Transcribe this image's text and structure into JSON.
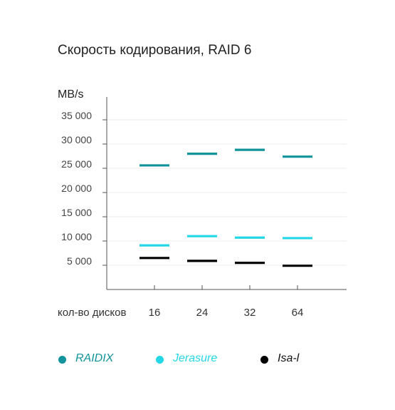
{
  "title": "Скорость кодирования, RAID 6",
  "chart_data": {
    "type": "scatter",
    "ylabel": "MB/s",
    "xlabel": "кол-во дисков",
    "categories": [
      "16",
      "24",
      "32",
      "64"
    ],
    "yticks": [
      "5 000",
      "10 000",
      "15 000",
      "20 000",
      "25 000",
      "30 000",
      "35 000"
    ],
    "ytick_values": [
      5000,
      10000,
      15000,
      20000,
      25000,
      30000,
      35000
    ],
    "ylim": [
      0,
      35000
    ],
    "grid": true,
    "legend_position": "bottom",
    "series": [
      {
        "name": "RAIDIX",
        "color": "#11939c",
        "values": [
          25600,
          28000,
          28800,
          27400
        ]
      },
      {
        "name": "Jerasure",
        "color": "#23d7e6",
        "values": [
          9100,
          11000,
          10700,
          10600
        ]
      },
      {
        "name": "Isa-l",
        "color": "#000000",
        "values": [
          6500,
          5900,
          5500,
          4900
        ]
      }
    ]
  }
}
